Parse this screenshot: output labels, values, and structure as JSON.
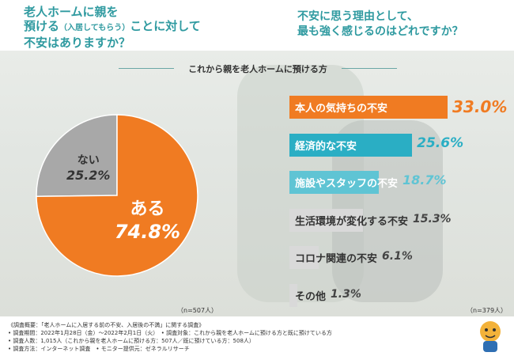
{
  "header": {
    "q1_line1": "老人ホームに親を",
    "q1_line2a": "預ける",
    "q1_line2b": "（入居してもらう）",
    "q1_line2c": "ことに対して",
    "q1_line3": "不安はありますか？",
    "q2_line1": "不安に思う理由として、",
    "q2_line2": "最も強く感じるのはどれですか？"
  },
  "group_label": "これから親を老人ホームに預ける方",
  "chart_data": [
    {
      "type": "pie",
      "categories": [
        "ある",
        "ない"
      ],
      "values": [
        74.8,
        25.2
      ],
      "value_labels": [
        "74.8%",
        "25.2%"
      ],
      "colors": [
        "#f07b22",
        "#a8a8a8"
      ],
      "sample": "（n=507人）"
    },
    {
      "type": "bar",
      "categories": [
        "本人の気持ちの不安",
        "経済的な不安",
        "施設やスタッフの不安",
        "生活環境が変化する不安",
        "コロナ関連の不安",
        "その他"
      ],
      "values": [
        33.0,
        25.6,
        18.7,
        15.3,
        6.1,
        1.3
      ],
      "value_labels": [
        "33.0%",
        "25.6%",
        "18.7%",
        "15.3%",
        "6.1%",
        "1.3%"
      ],
      "colors": [
        "#f07b22",
        "#2aaec4",
        "#5fc4d4",
        "#d9d9d9",
        "#d9d9d9",
        "#d9d9d9"
      ],
      "label_colors": [
        "#ffffff",
        "#ffffff",
        "#ffffff",
        "#333333",
        "#333333",
        "#333333"
      ],
      "value_colors": [
        "#f07b22",
        "#2aaec4",
        "#5fc4d4",
        "#444444",
        "#444444",
        "#444444"
      ],
      "sample": "（n=379人）"
    }
  ],
  "footer": {
    "line1": "《調査概要：「老人ホームに入居する前の不安、入居後の不満」に関する調査》",
    "line2": "• 調査期間：2022年1月28日（金）～2022年2月1日（火）　• 調査対象：これから親を老人ホームに預ける方と既に預けている方",
    "line3": "• 調査人数：1,015人（これから親を老人ホームに預ける方：507人／既に預けている方：508人）",
    "line4": "• 調査方法：インターネット調査　• モニター提供元：ゼネラルリサーチ"
  }
}
